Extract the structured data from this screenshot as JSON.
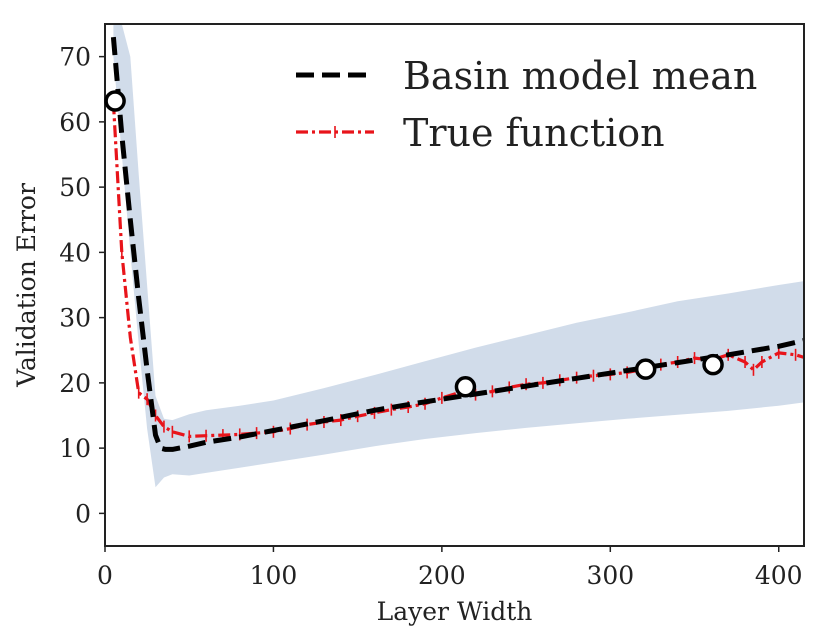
{
  "chart_data": {
    "type": "line",
    "title": "",
    "xlabel": "Layer Width",
    "ylabel": "Validation Error",
    "xlim": [
      0,
      415
    ],
    "ylim": [
      -5,
      75
    ],
    "xticks": [
      0,
      100,
      200,
      300,
      400
    ],
    "yticks": [
      0,
      10,
      20,
      30,
      40,
      50,
      60,
      70
    ],
    "grid": false,
    "legend_position": "top-right",
    "colors": {
      "basin_mean": "#000000",
      "true_function": "#e8141a",
      "band": "#c9d6e6",
      "observation_fill": "#ffffff",
      "observation_edge": "#000000"
    },
    "series": [
      {
        "name": "Basin model mean",
        "style": "dashed",
        "x": [
          5,
          10,
          15,
          20,
          25,
          30,
          33,
          36,
          40,
          50,
          60,
          80,
          100,
          130,
          160,
          190,
          220,
          250,
          280,
          310,
          340,
          370,
          400,
          415
        ],
        "y": [
          73,
          58,
          45,
          33,
          22,
          12,
          10,
          9.8,
          9.8,
          10.3,
          10.9,
          11.7,
          12.7,
          14.2,
          15.8,
          17.1,
          18.3,
          19.5,
          20.7,
          21.9,
          23.1,
          24.3,
          25.6,
          26.5
        ]
      },
      {
        "name": "True function",
        "style": "dash-dot-plus",
        "x": [
          5,
          10,
          15,
          20,
          25,
          30,
          35,
          40,
          50,
          60,
          70,
          80,
          90,
          100,
          110,
          120,
          130,
          140,
          150,
          160,
          170,
          180,
          190,
          200,
          210,
          220,
          230,
          240,
          250,
          260,
          270,
          280,
          290,
          300,
          310,
          320,
          330,
          340,
          350,
          360,
          370,
          380,
          385,
          390,
          400,
          410,
          415
        ],
        "y": [
          63,
          40,
          27,
          18.5,
          17.5,
          15,
          13.3,
          12.5,
          11.8,
          11.9,
          12,
          12.1,
          12.3,
          12.5,
          13,
          13.6,
          14,
          14.3,
          14.9,
          15.4,
          15.9,
          16.3,
          16.8,
          17.7,
          18.5,
          18.2,
          18.7,
          19.3,
          19.8,
          20,
          20.4,
          20.8,
          21.1,
          21.3,
          21.6,
          22.1,
          22.8,
          23.2,
          23.8,
          23.5,
          24.3,
          23.2,
          22,
          23.2,
          24.6,
          24.3,
          23.9
        ]
      },
      {
        "name": "Observations",
        "style": "markers",
        "x": [
          6,
          214,
          321,
          361
        ],
        "y": [
          63.2,
          19.4,
          22.1,
          22.8
        ]
      }
    ],
    "band": {
      "name": "Uncertainty band",
      "x": [
        5,
        10,
        15,
        20,
        25,
        30,
        35,
        40,
        50,
        60,
        80,
        100,
        130,
        160,
        190,
        220,
        250,
        280,
        310,
        340,
        370,
        400,
        415
      ],
      "lower": [
        70,
        55,
        40,
        26,
        13,
        4,
        5.5,
        6,
        5.8,
        6.2,
        7,
        7.8,
        9,
        10.3,
        11.4,
        12.3,
        13.1,
        13.8,
        14.5,
        15.1,
        15.7,
        16.5,
        17
      ],
      "upper": [
        75,
        75,
        70,
        52,
        35,
        18,
        14.5,
        14.3,
        15.2,
        15.8,
        16.5,
        17.3,
        19.2,
        21.2,
        23.3,
        25.4,
        27.3,
        29.2,
        30.8,
        32.5,
        33.7,
        35,
        35.6
      ]
    },
    "legend": [
      "Basin model mean",
      "True function"
    ]
  }
}
